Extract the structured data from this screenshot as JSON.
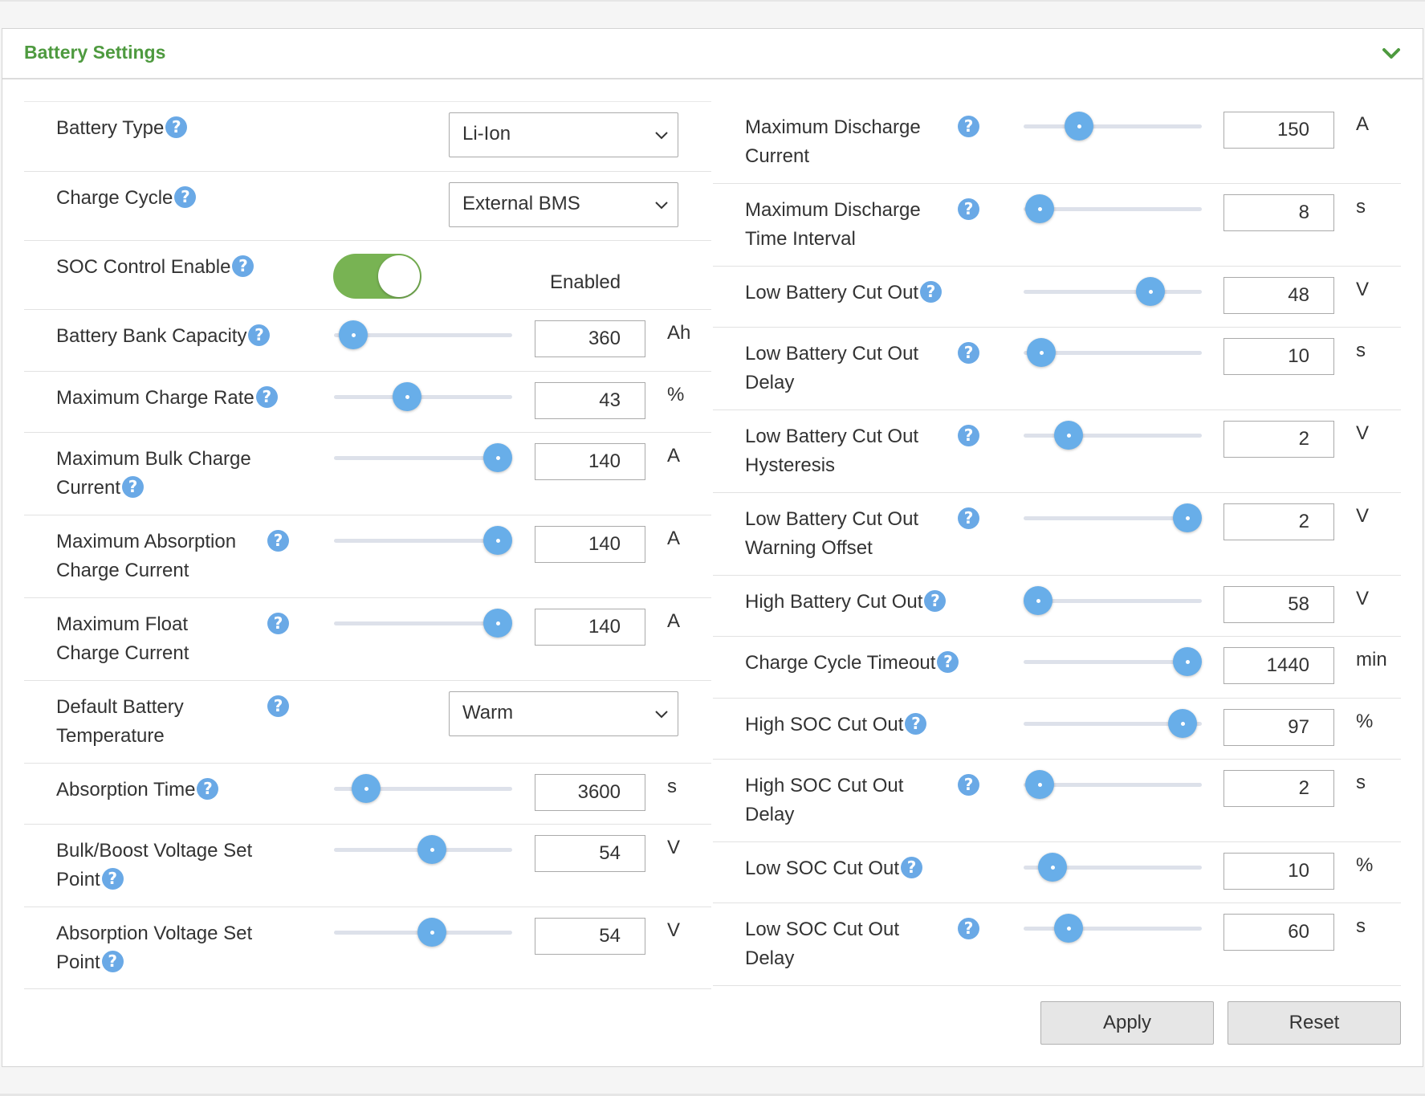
{
  "panel": {
    "title": "Battery Settings",
    "collapse_icon": "chevron-down-icon"
  },
  "colors": {
    "accent": "#4e9a3f",
    "toggle_on": "#78b353",
    "slider_thumb": "#68aee9",
    "help_icon": "#6aa9e6"
  },
  "left": [
    {
      "id": "battery-type",
      "type": "select",
      "label_lines": [
        "Battery Type"
      ],
      "value": "Li-Ion",
      "height": 87,
      "help": "inline"
    },
    {
      "id": "charge-cycle",
      "type": "select",
      "label_lines": [
        "Charge Cycle"
      ],
      "value": "External BMS",
      "height": 86,
      "help": "inline"
    },
    {
      "id": "soc-control-enable",
      "type": "toggle",
      "label_lines": [
        "SOC Control Enable"
      ],
      "state": "Enabled",
      "on": true,
      "height": 86,
      "help": "inline"
    },
    {
      "id": "battery-bank-capacity",
      "type": "slider",
      "label_lines": [
        "Battery Bank Capacity"
      ],
      "value": "360",
      "unit": "Ah",
      "pos": 0.11,
      "height": 77,
      "help": "inline"
    },
    {
      "id": "maximum-charge-rate",
      "type": "slider",
      "label_lines": [
        "Maximum Charge Rate"
      ],
      "value": "43",
      "unit": "%",
      "pos": 0.41,
      "height": 76,
      "help": "inline"
    },
    {
      "id": "maximum-bulk-charge-current",
      "type": "slider",
      "label_lines": [
        "Maximum Bulk Charge",
        "Current"
      ],
      "value": "140",
      "unit": "A",
      "pos": 0.92,
      "height": 103,
      "help": "inline"
    },
    {
      "id": "maximum-absorption-charge-current",
      "type": "slider",
      "label_lines": [
        "Maximum Absorption",
        "Charge Current"
      ],
      "value": "140",
      "unit": "A",
      "pos": 0.92,
      "height": 103,
      "help": "abs"
    },
    {
      "id": "maximum-float-charge-current",
      "type": "slider",
      "label_lines": [
        "Maximum Float",
        "Charge Current"
      ],
      "value": "140",
      "unit": "A",
      "pos": 0.92,
      "height": 103,
      "help": "abs"
    },
    {
      "id": "default-battery-temperature",
      "type": "select",
      "label_lines": [
        "Default Battery",
        "Temperature"
      ],
      "value": "Warm",
      "height": 103,
      "help": "abs"
    },
    {
      "id": "absorption-time",
      "type": "slider",
      "label_lines": [
        "Absorption Time"
      ],
      "value": "3600",
      "unit": "s",
      "pos": 0.18,
      "height": 76,
      "help": "inline"
    },
    {
      "id": "bulk-boost-voltage-set-point",
      "type": "slider",
      "label_lines": [
        "Bulk/Boost Voltage Set",
        "Point"
      ],
      "value": "54",
      "unit": "V",
      "pos": 0.55,
      "height": 103,
      "help": "inline"
    },
    {
      "id": "absorption-voltage-set-point",
      "type": "slider",
      "label_lines": [
        "Absorption Voltage Set",
        "Point"
      ],
      "value": "54",
      "unit": "V",
      "pos": 0.55,
      "height": 102,
      "help": "inline"
    }
  ],
  "right": [
    {
      "id": "maximum-discharge-current",
      "type": "slider",
      "label_lines": [
        "Maximum Discharge",
        "Current"
      ],
      "value": "150",
      "unit": "A",
      "pos": 0.31,
      "height": 103,
      "help": "abs"
    },
    {
      "id": "maximum-discharge-time-interval",
      "type": "slider",
      "label_lines": [
        "Maximum Discharge",
        "Time Interval"
      ],
      "value": "8",
      "unit": "s",
      "pos": 0.09,
      "height": 103,
      "help": "abs"
    },
    {
      "id": "low-battery-cut-out",
      "type": "slider",
      "label_lines": [
        "Low Battery Cut Out"
      ],
      "value": "48",
      "unit": "V",
      "pos": 0.71,
      "height": 76,
      "help": "inline"
    },
    {
      "id": "low-battery-cut-out-delay",
      "type": "slider",
      "label_lines": [
        "Low Battery Cut Out",
        "Delay"
      ],
      "value": "10",
      "unit": "s",
      "pos": 0.1,
      "height": 103,
      "help": "abs"
    },
    {
      "id": "low-battery-cut-out-hysteresis",
      "type": "slider",
      "label_lines": [
        "Low Battery Cut Out",
        "Hysteresis"
      ],
      "value": "2",
      "unit": "V",
      "pos": 0.25,
      "height": 103,
      "help": "abs"
    },
    {
      "id": "low-battery-cut-out-warning-offset",
      "type": "slider",
      "label_lines": [
        "Low Battery Cut Out",
        "Warning Offset"
      ],
      "value": "2",
      "unit": "V",
      "pos": 0.92,
      "height": 103,
      "help": "abs"
    },
    {
      "id": "high-battery-cut-out",
      "type": "slider",
      "label_lines": [
        "High Battery Cut Out"
      ],
      "value": "58",
      "unit": "V",
      "pos": 0.08,
      "height": 76,
      "help": "inline"
    },
    {
      "id": "charge-cycle-timeout",
      "type": "slider",
      "label_lines": [
        "Charge Cycle Timeout"
      ],
      "value": "1440",
      "unit": "min",
      "pos": 0.92,
      "height": 77,
      "help": "inline"
    },
    {
      "id": "high-soc-cut-out",
      "type": "slider",
      "label_lines": [
        "High SOC Cut Out"
      ],
      "value": "97",
      "unit": "%",
      "pos": 0.89,
      "height": 76,
      "help": "inline"
    },
    {
      "id": "high-soc-cut-out-delay",
      "type": "slider",
      "label_lines": [
        "High SOC Cut Out",
        "Delay"
      ],
      "value": "2",
      "unit": "s",
      "pos": 0.09,
      "height": 103,
      "help": "abs"
    },
    {
      "id": "low-soc-cut-out",
      "type": "slider",
      "label_lines": [
        "Low SOC Cut Out"
      ],
      "value": "10",
      "unit": "%",
      "pos": 0.16,
      "height": 76,
      "help": "inline"
    },
    {
      "id": "low-soc-cut-out-delay",
      "type": "slider",
      "label_lines": [
        "Low SOC Cut Out",
        "Delay"
      ],
      "value": "60",
      "unit": "s",
      "pos": 0.25,
      "height": 103,
      "help": "abs"
    }
  ],
  "buttons": {
    "apply": "Apply",
    "reset": "Reset"
  }
}
